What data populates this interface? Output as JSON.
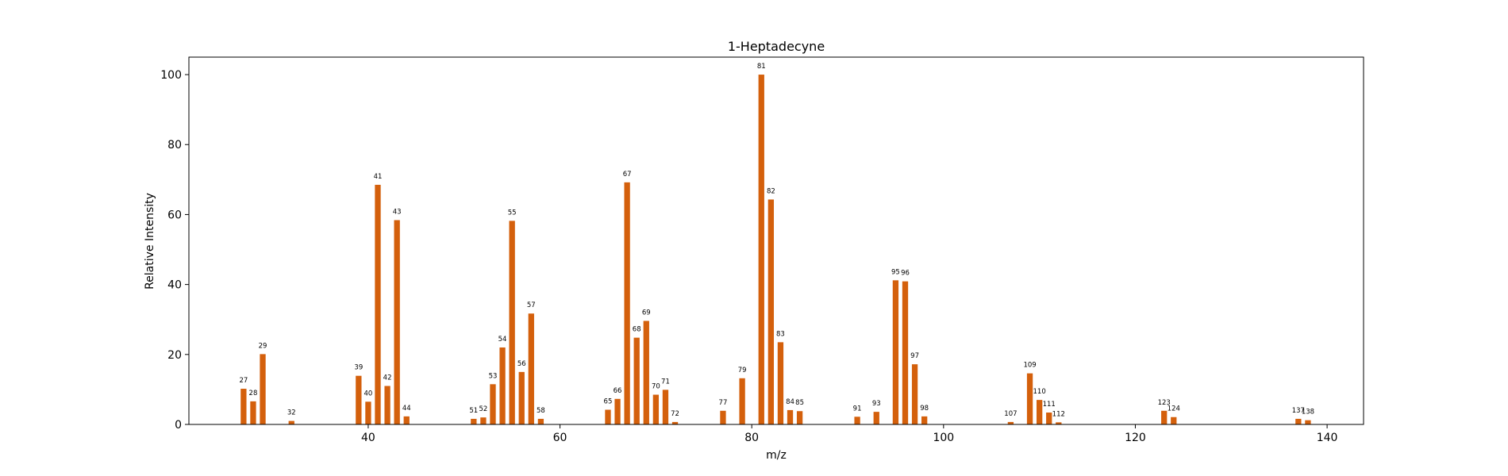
{
  "chart_data": {
    "type": "bar",
    "title": "1-Heptadecyne",
    "xlabel": "m/z",
    "ylabel": "Relative Intensity",
    "xlim": [
      21.3,
      143.8
    ],
    "ylim": [
      0,
      105
    ],
    "x_ticks": [
      40,
      60,
      80,
      100,
      120,
      140
    ],
    "y_ticks": [
      0,
      20,
      40,
      60,
      80,
      100
    ],
    "bar_color": "#d4600c",
    "grid": false,
    "x": [
      27,
      28,
      29,
      32,
      39,
      40,
      41,
      42,
      43,
      44,
      51,
      52,
      53,
      54,
      55,
      56,
      57,
      58,
      65,
      66,
      67,
      68,
      69,
      70,
      71,
      72,
      77,
      79,
      81,
      82,
      83,
      84,
      85,
      91,
      93,
      95,
      96,
      97,
      98,
      107,
      109,
      110,
      111,
      112,
      123,
      124,
      137,
      138
    ],
    "values": [
      10.2,
      6.6,
      20.1,
      1.0,
      13.9,
      6.5,
      68.5,
      11.0,
      58.4,
      2.3,
      1.6,
      2.0,
      11.5,
      22.0,
      58.2,
      15.0,
      31.7,
      1.6,
      4.2,
      7.3,
      69.2,
      24.8,
      29.6,
      8.5,
      9.9,
      0.7,
      3.9,
      13.2,
      100.0,
      64.3,
      23.5,
      4.1,
      3.8,
      2.2,
      3.6,
      41.2,
      40.9,
      17.2,
      2.3,
      0.7,
      14.6,
      7.0,
      3.4,
      0.6,
      3.9,
      2.1,
      1.6,
      1.2
    ],
    "labels": [
      "27",
      "28",
      "29",
      "32",
      "39",
      "40",
      "41",
      "42",
      "43",
      "44",
      "51",
      "52",
      "53",
      "54",
      "55",
      "56",
      "57",
      "58",
      "65",
      "66",
      "67",
      "68",
      "69",
      "70",
      "71",
      "72",
      "77",
      "79",
      "81",
      "82",
      "83",
      "84",
      "85",
      "91",
      "93",
      "95",
      "96",
      "97",
      "98",
      "107",
      "109",
      "110",
      "111",
      "112",
      "123",
      "124",
      "137",
      "138"
    ]
  }
}
